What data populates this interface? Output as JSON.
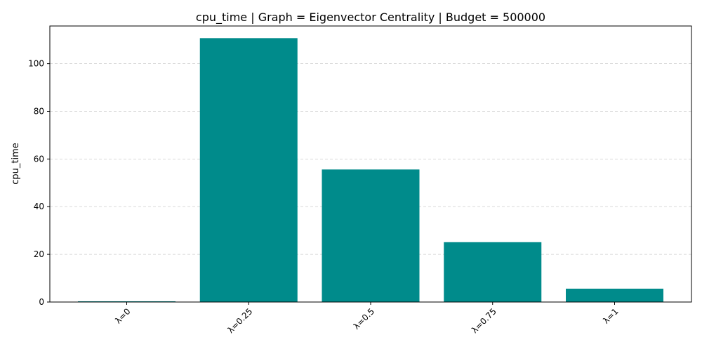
{
  "chart_data": {
    "type": "bar",
    "title": "cpu_time | Graph = Eigenvector Centrality | Budget = 500000",
    "xlabel": "",
    "ylabel": "cpu_time",
    "categories": [
      "λ=0",
      "λ=0.25",
      "λ=0.5",
      "λ=0.75",
      "λ=1"
    ],
    "values": [
      0.3,
      110.7,
      55.6,
      25.1,
      5.6
    ],
    "ylim": [
      0,
      115.8
    ],
    "yticks": [
      0,
      20,
      40,
      60,
      80,
      100
    ],
    "grid": "y-dashed",
    "legend": "none",
    "bar_color": "#008b8b",
    "grid_color": "#cccccc"
  }
}
